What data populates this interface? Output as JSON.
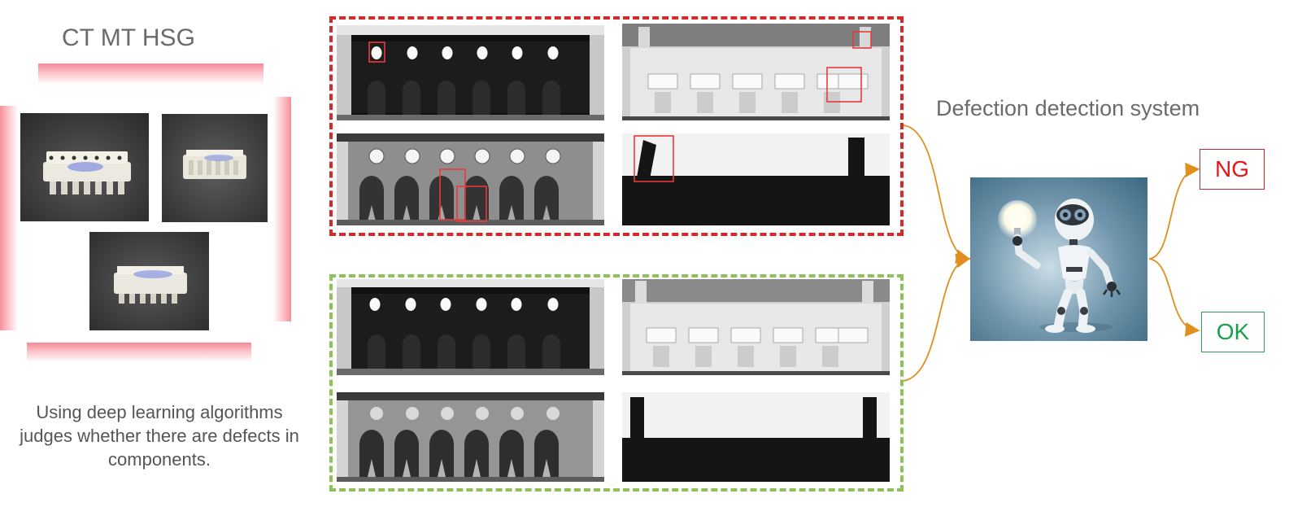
{
  "left_panel": {
    "title": "CT MT HSG",
    "description_lines": [
      "Using deep learning algorithms",
      "judges whether there are defects in",
      "components."
    ]
  },
  "right_panel": {
    "system_title": "Defection detection system",
    "result_ng": "NG",
    "result_ok": "OK"
  },
  "colors": {
    "ng_group_border": "#d42a2a",
    "ok_group_border": "#8cc257",
    "arrow": "#e08f1e",
    "ng_text": "#e01818",
    "ok_text": "#17a04a",
    "ng_box_border": "#c0282c",
    "ok_box_border": "#2e9a59",
    "defect_marker": "#e83a3a",
    "glow": "#f58a95"
  },
  "icons": {
    "robot": "robot-with-lightbulb-icon",
    "lightbulb": "lightbulb-icon"
  }
}
